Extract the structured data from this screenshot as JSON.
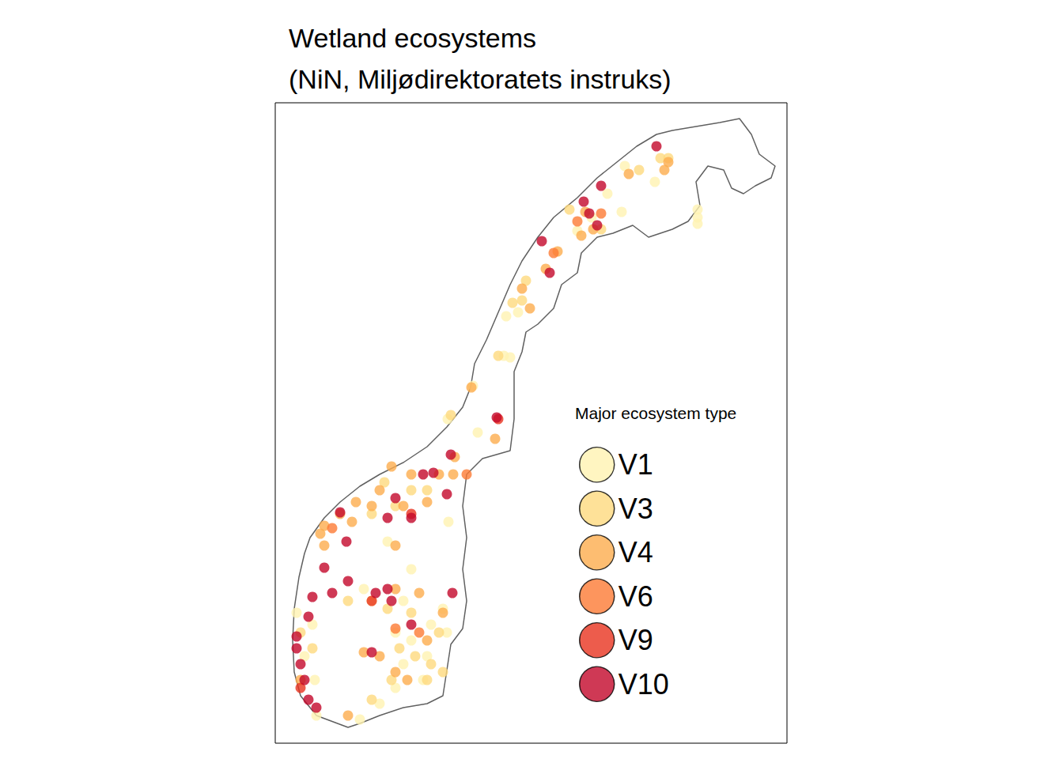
{
  "chart_data": {
    "type": "scatter",
    "title": "Wetland ecosystems",
    "subtitle": "(NiN, Miljødirektoratets instruks)",
    "legend_title": "Major ecosystem type",
    "legend": "right",
    "tick_labels": false,
    "xlim": [
      0,
      647
    ],
    "ylim": [
      0,
      810
    ],
    "outline": [
      [
        92,
        20
      ],
      [
        52,
        35
      ],
      [
        32,
        60
      ],
      [
        24,
        90
      ],
      [
        22,
        130
      ],
      [
        24,
        170
      ],
      [
        30,
        210
      ],
      [
        37,
        240
      ],
      [
        44,
        260
      ],
      [
        62,
        285
      ],
      [
        82,
        305
      ],
      [
        107,
        325
      ],
      [
        132,
        340
      ],
      [
        162,
        355
      ],
      [
        192,
        375
      ],
      [
        217,
        400
      ],
      [
        237,
        425
      ],
      [
        247,
        450
      ],
      [
        252,
        480
      ],
      [
        267,
        510
      ],
      [
        282,
        545
      ],
      [
        297,
        580
      ],
      [
        312,
        610
      ],
      [
        332,
        640
      ],
      [
        352,
        665
      ],
      [
        382,
        690
      ],
      [
        407,
        715
      ],
      [
        432,
        735
      ],
      [
        457,
        755
      ],
      [
        482,
        770
      ],
      [
        502,
        775
      ],
      [
        532,
        780
      ],
      [
        562,
        785
      ],
      [
        587,
        790
      ],
      [
        602,
        770
      ],
      [
        612,
        745
      ],
      [
        632,
        730
      ],
      [
        627,
        715
      ],
      [
        607,
        705
      ],
      [
        592,
        695
      ],
      [
        577,
        702
      ],
      [
        567,
        725
      ],
      [
        547,
        730
      ],
      [
        532,
        710
      ],
      [
        537,
        680
      ],
      [
        522,
        660
      ],
      [
        502,
        650
      ],
      [
        472,
        640
      ],
      [
        452,
        655
      ],
      [
        427,
        645
      ],
      [
        407,
        640
      ],
      [
        387,
        620
      ],
      [
        382,
        595
      ],
      [
        362,
        580
      ],
      [
        352,
        550
      ],
      [
        332,
        530
      ],
      [
        317,
        520
      ],
      [
        312,
        495
      ],
      [
        302,
        470
      ],
      [
        302,
        440
      ],
      [
        302,
        410
      ],
      [
        297,
        370
      ],
      [
        262,
        360
      ],
      [
        242,
        340
      ],
      [
        237,
        300
      ],
      [
        242,
        260
      ],
      [
        237,
        220
      ],
      [
        242,
        180
      ],
      [
        237,
        145
      ],
      [
        222,
        125
      ],
      [
        212,
        60
      ],
      [
        192,
        50
      ],
      [
        162,
        45
      ],
      [
        132,
        35
      ],
      [
        107,
        25
      ],
      [
        92,
        20
      ]
    ],
    "series": [
      {
        "name": "V1",
        "color": "#FFF2B2",
        "values": [
          [
            442,
            730
          ],
          [
            480,
            710
          ],
          [
            534,
            675
          ],
          [
            534,
            665
          ],
          [
            534,
            657
          ],
          [
            438,
            672
          ],
          [
            420,
            695
          ],
          [
            400,
            665
          ],
          [
            382,
            648
          ],
          [
            292,
            540
          ],
          [
            307,
            545
          ],
          [
            289,
            490
          ],
          [
            297,
            488
          ],
          [
            250,
            452
          ],
          [
            218,
            410
          ],
          [
            256,
            393
          ],
          [
            219,
            280
          ],
          [
            142,
            255
          ],
          [
            112,
            195
          ],
          [
            172,
            220
          ],
          [
            212,
            170
          ],
          [
            192,
            110
          ],
          [
            187,
            80
          ],
          [
            162,
            100
          ],
          [
            152,
            70
          ],
          [
            132,
            50
          ],
          [
            107,
            30
          ],
          [
            52,
            35
          ],
          [
            27,
            165
          ],
          [
            47,
            150
          ],
          [
            37,
            110
          ],
          [
            50,
            80
          ],
          [
            172,
            130
          ],
          [
            217,
            140
          ],
          [
            197,
            150
          ],
          [
            152,
            140
          ],
          [
            162,
            180
          ]
        ]
      },
      {
        "name": "V3",
        "color": "#FEDA7E",
        "values": [
          [
            487,
            740
          ],
          [
            497,
            740
          ],
          [
            460,
            725
          ],
          [
            412,
            650
          ],
          [
            372,
            675
          ],
          [
            317,
            585
          ],
          [
            312,
            560
          ],
          [
            300,
            557
          ],
          [
            282,
            490
          ],
          [
            222,
            415
          ],
          [
            138,
            330
          ],
          [
            172,
            320
          ],
          [
            192,
            320
          ],
          [
            122,
            290
          ],
          [
            152,
            300
          ],
          [
            192,
            80
          ],
          [
            197,
            100
          ],
          [
            177,
            110
          ],
          [
            157,
            120
          ],
          [
            142,
            170
          ],
          [
            122,
            180
          ],
          [
            92,
            180
          ],
          [
            172,
            165
          ],
          [
            207,
            140
          ],
          [
            212,
            90
          ],
          [
            147,
            80
          ],
          [
            122,
            55
          ],
          [
            32,
            140
          ],
          [
            47,
            120
          ]
        ]
      },
      {
        "name": "V4",
        "color": "#FDAD4E",
        "values": [
          [
            497,
            735
          ],
          [
            492,
            725
          ],
          [
            447,
            720
          ],
          [
            392,
            672
          ],
          [
            402,
            650
          ],
          [
            387,
            642
          ],
          [
            357,
            622
          ],
          [
            342,
            600
          ],
          [
            322,
            550
          ],
          [
            312,
            575
          ],
          [
            248,
            450
          ],
          [
            278,
            385
          ],
          [
            227,
            362
          ],
          [
            225,
            340
          ],
          [
            147,
            350
          ],
          [
            172,
            340
          ],
          [
            207,
            340
          ],
          [
            132,
            320
          ],
          [
            162,
            300
          ],
          [
            102,
            305
          ],
          [
            62,
            275
          ],
          [
            82,
            290
          ],
          [
            97,
            280
          ],
          [
            122,
            300
          ],
          [
            192,
            305
          ],
          [
            112,
            115
          ],
          [
            132,
            110
          ],
          [
            152,
            90
          ],
          [
            192,
            130
          ],
          [
            212,
            165
          ],
          [
            182,
            190
          ],
          [
            152,
            195
          ],
          [
            62,
            250
          ],
          [
            57,
            265
          ],
          [
            152,
            250
          ],
          [
            92,
            35
          ],
          [
            167,
            80
          ],
          [
            32,
            80
          ]
        ]
      },
      {
        "name": "V6",
        "color": "#FC7A35",
        "values": [
          [
            382,
            660
          ],
          [
            412,
            670
          ],
          [
            352,
            620
          ],
          [
            242,
            340
          ],
          [
            72,
            272
          ],
          [
            152,
            145
          ],
          [
            182,
            140
          ]
        ]
      },
      {
        "name": "V9",
        "color": "#E8331F",
        "values": [
          [
            282,
            410
          ],
          [
            172,
            290
          ],
          [
            32,
            70
          ],
          [
            122,
            180
          ]
        ]
      },
      {
        "name": "V10",
        "color": "#C3082A",
        "values": [
          [
            482,
            755
          ],
          [
            390,
            685
          ],
          [
            397,
            670
          ],
          [
            407,
            655
          ],
          [
            412,
            705
          ],
          [
            337,
            635
          ],
          [
            347,
            595
          ],
          [
            280,
            412
          ],
          [
            222,
            365
          ],
          [
            200,
            342
          ],
          [
            217,
            315
          ],
          [
            172,
            285
          ],
          [
            142,
            285
          ],
          [
            82,
            292
          ],
          [
            90,
            255
          ],
          [
            62,
            222
          ],
          [
            92,
            205
          ],
          [
            72,
            190
          ],
          [
            142,
            195
          ],
          [
            147,
            180
          ],
          [
            127,
            190
          ],
          [
            172,
            150
          ],
          [
            224,
            190
          ],
          [
            122,
            115
          ],
          [
            42,
            160
          ],
          [
            27,
            135
          ],
          [
            32,
            100
          ],
          [
            37,
            80
          ],
          [
            42,
            55
          ],
          [
            52,
            45
          ],
          [
            27,
            120
          ],
          [
            47,
            185
          ],
          [
            152,
            310
          ],
          [
            187,
            340
          ]
        ]
      }
    ]
  }
}
